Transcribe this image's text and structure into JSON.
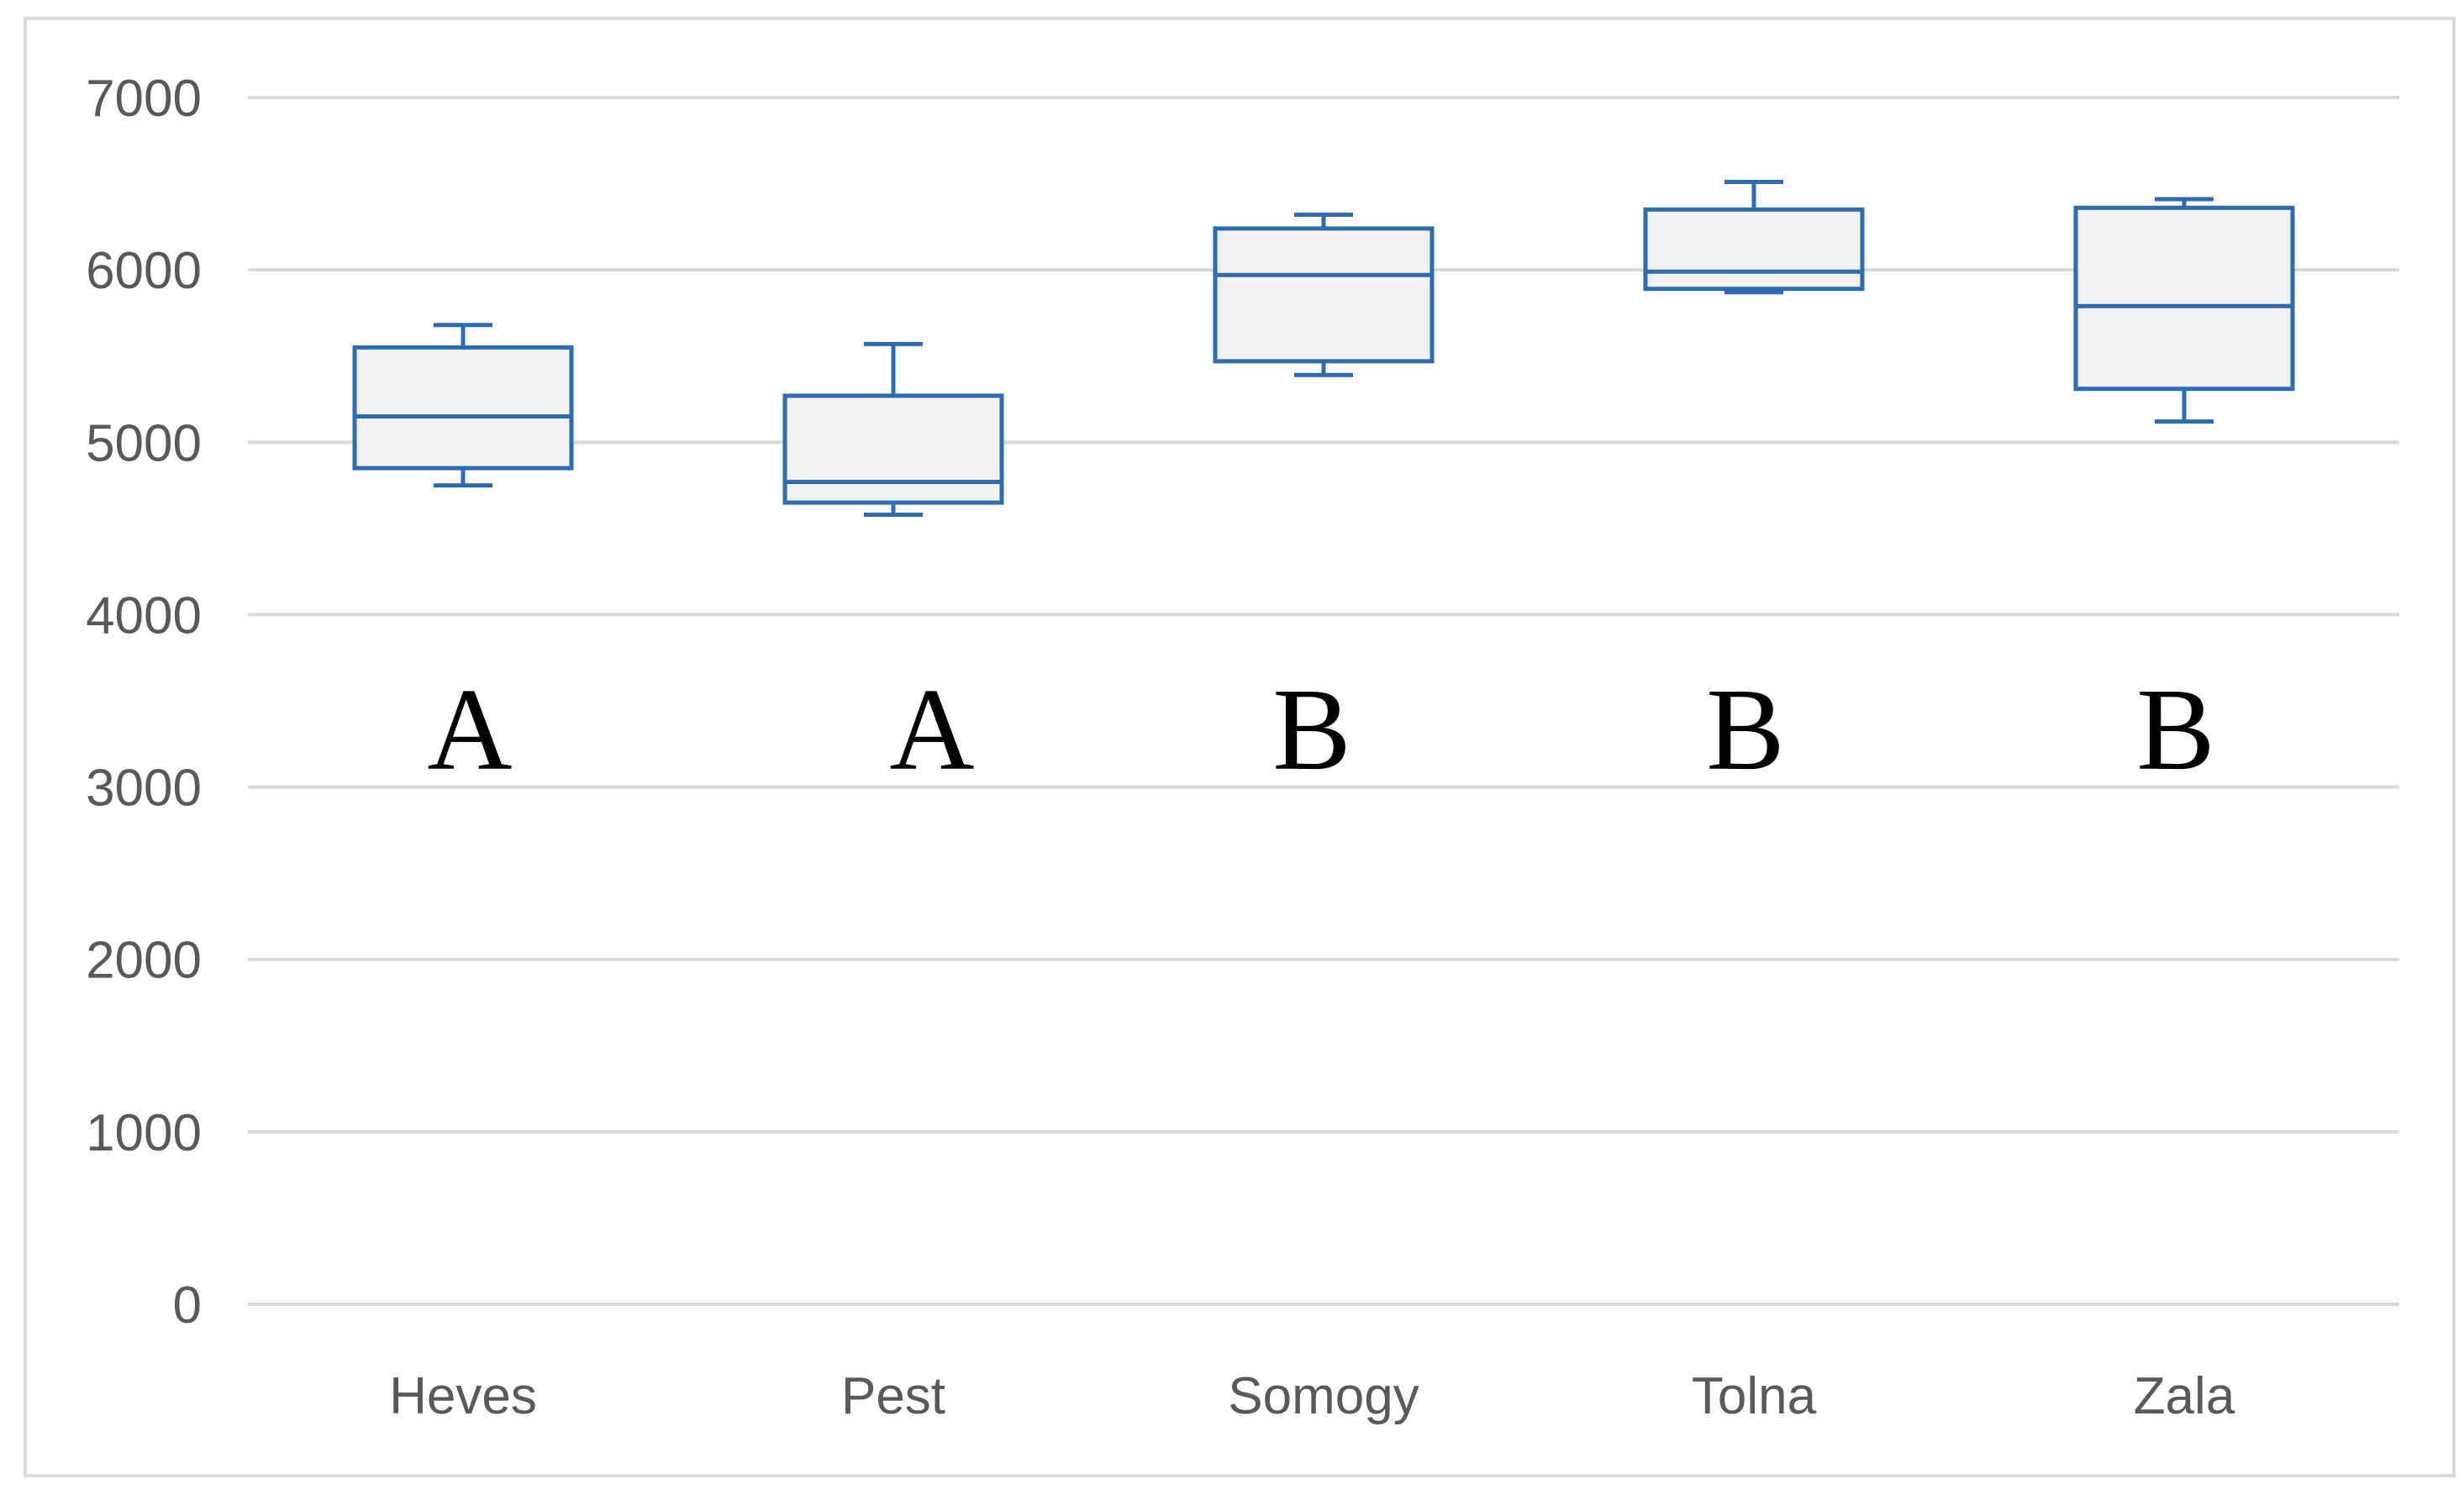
{
  "chart_data": {
    "type": "box",
    "categories": [
      "Heves",
      "Pest",
      "Somogy",
      "Tolna",
      "Zala"
    ],
    "boxes": [
      {
        "category": "Heves",
        "min": 4750,
        "q1": 4850,
        "median": 5150,
        "q3": 5550,
        "max": 5680,
        "group": "A"
      },
      {
        "category": "Pest",
        "min": 4580,
        "q1": 4650,
        "median": 4770,
        "q3": 5270,
        "max": 5570,
        "group": "A"
      },
      {
        "category": "Somogy",
        "min": 5390,
        "q1": 5470,
        "median": 5970,
        "q3": 6240,
        "max": 6320,
        "group": "B"
      },
      {
        "category": "Tolna",
        "min": 5870,
        "q1": 5890,
        "median": 5990,
        "q3": 6350,
        "max": 6510,
        "group": "B"
      },
      {
        "category": "Zala",
        "min": 5120,
        "q1": 5310,
        "median": 5790,
        "q3": 6360,
        "max": 6410,
        "group": "B"
      }
    ],
    "yticks": [
      0,
      1000,
      2000,
      3000,
      4000,
      5000,
      6000,
      7000
    ],
    "ylim": [
      0,
      7000
    ],
    "group_letter_level": 3350,
    "title": "",
    "xlabel": "",
    "ylabel": "",
    "grid": true,
    "legend": "none",
    "colors": {
      "box_stroke": "#2e6bb0",
      "box_fill": "#f2f2f2",
      "grid": "#d9d9d9",
      "axis": "#d9d9d9",
      "frame": "#d9d9d9",
      "tick_text": "#595959",
      "letter_text": "#000000"
    }
  }
}
